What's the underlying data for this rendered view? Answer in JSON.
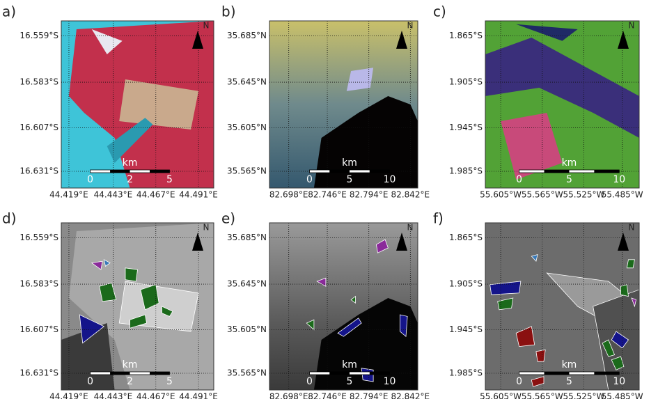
{
  "north": "N",
  "panels": [
    {
      "label": "a)",
      "y_labels": [
        "16.559°S",
        "16.583°S",
        "16.607°S",
        "16.631°S"
      ],
      "x_labels": [
        "44.419°E",
        "44.443°E",
        "44.467°E",
        "44.491°E"
      ],
      "scale": {
        "unit": "km",
        "ticks": [
          "0",
          "2",
          "5"
        ]
      }
    },
    {
      "label": "b)",
      "y_labels": [
        "35.685°N",
        "35.645°N",
        "35.605°N",
        "35.565°N"
      ],
      "x_labels": [
        "82.698°E",
        "82.746°E",
        "82.794°E",
        "82.842°E"
      ],
      "scale": {
        "unit": "km",
        "ticks": [
          "0",
          "5",
          "10"
        ]
      }
    },
    {
      "label": "c)",
      "y_labels": [
        "1.865°S",
        "1.905°S",
        "1.945°S",
        "1.985°S"
      ],
      "x_labels": [
        "55.605°W",
        "55.565°W",
        "55.525°W",
        "55.485°W"
      ],
      "scale": {
        "unit": "km",
        "ticks": [
          "0",
          "5",
          "10"
        ]
      }
    },
    {
      "label": "d)",
      "y_labels": [
        "16.559°S",
        "16.583°S",
        "16.607°S",
        "16.631°S"
      ],
      "x_labels": [
        "44.419°E",
        "44.443°E",
        "44.467°E",
        "44.491°E"
      ],
      "scale": {
        "unit": "km",
        "ticks": [
          "0",
          "2",
          "5"
        ]
      }
    },
    {
      "label": "e)",
      "y_labels": [
        "35.685°N",
        "35.645°N",
        "35.605°N",
        "35.565°N"
      ],
      "x_labels": [
        "82.698°E",
        "82.746°E",
        "82.794°E",
        "82.842°E"
      ],
      "scale": {
        "unit": "km",
        "ticks": [
          "0",
          "5",
          "10"
        ]
      }
    },
    {
      "label": "f)",
      "y_labels": [
        "1.865°S",
        "1.905°S",
        "1.945°S",
        "1.985°S"
      ],
      "x_labels": [
        "55.605°W",
        "55.565°W",
        "55.525°W",
        "55.485°W"
      ],
      "scale": {
        "unit": "km",
        "ticks": [
          "0",
          "5",
          "10"
        ]
      }
    }
  ]
}
